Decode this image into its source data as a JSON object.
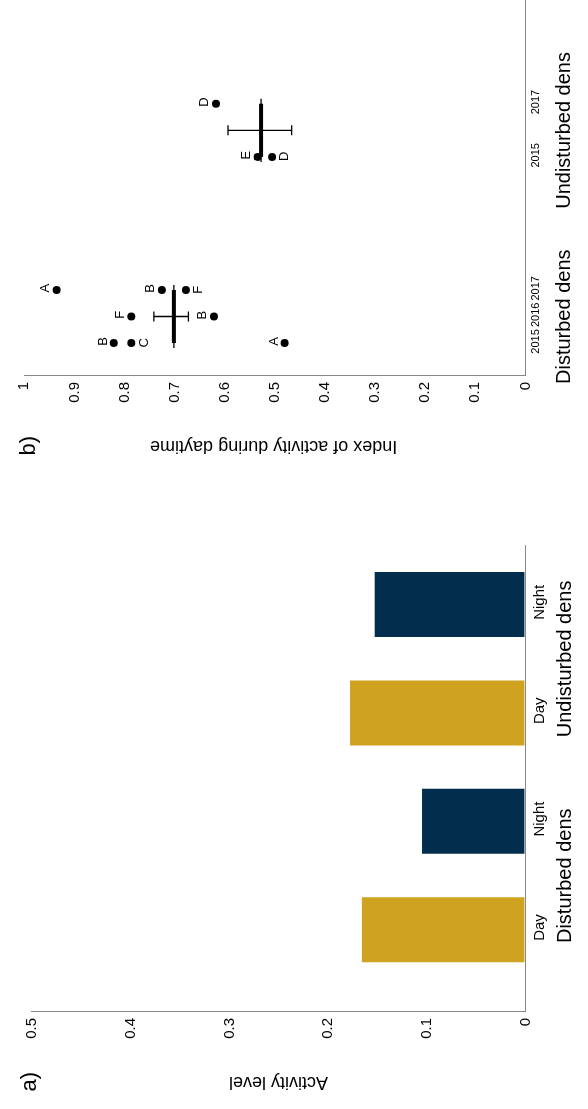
{
  "chart_data": [
    {
      "type": "bar",
      "title": "a)",
      "xlabel": "Activity level",
      "orientation": "horizontal",
      "categories": [
        "Night",
        "Day",
        "Night",
        "Day"
      ],
      "values": [
        0.152,
        0.177,
        0.104,
        0.165
      ],
      "colors": [
        "#022d4d",
        "#cfa320",
        "#022d4d",
        "#cfa320"
      ],
      "xlim": [
        0.5,
        0
      ],
      "xticks": [
        0,
        0.1,
        0.2,
        0.3,
        0.4,
        0.5
      ],
      "annotations": [
        "Undisturbed dens",
        "Disturbed dens"
      ]
    },
    {
      "type": "scatter",
      "title": "b)",
      "xlabel": "Index of activity during daytime",
      "orientation": "horizontal",
      "categories": [
        "2017",
        null,
        "2015",
        null,
        null,
        null,
        null,
        "2017",
        "2016",
        "2015"
      ],
      "series": [
        {
          "color": "#000000",
          "marker": "circle",
          "values": [
            0.616,
            null,
            0.533,
            null,
            null,
            null,
            null,
            0.934,
            0.785,
            0.82
          ],
          "value_labels": [
            "D",
            null,
            "E",
            null,
            null,
            null,
            null,
            "A",
            "F",
            "B"
          ]
        },
        {
          "color": "#000000",
          "marker": "circle",
          "values": [
            null,
            null,
            0.504,
            null,
            null,
            null,
            null,
            0.724,
            0.62,
            0.785
          ],
          "value_labels": [
            null,
            null,
            "D",
            null,
            null,
            null,
            null,
            "B",
            "B",
            "C"
          ]
        },
        {
          "color": "#000000",
          "marker": "circle",
          "values": [
            null,
            null,
            null,
            null,
            null,
            null,
            null,
            0.676,
            null,
            0.479
          ],
          "value_labels": [
            null,
            null,
            null,
            null,
            null,
            null,
            null,
            "F",
            null,
            "A"
          ]
        },
        {
          "type": "line",
          "color": "#000000",
          "marker": "none",
          "values": [
            0.526,
            0.526,
            0.526,
            null,
            null,
            null,
            null,
            null,
            null,
            null
          ],
          "errors": [
            null,
            [
              0.465,
              0.592
            ],
            null,
            null,
            null,
            null,
            null,
            null,
            null,
            null
          ]
        },
        {
          "type": "line",
          "color": "#000000",
          "marker": "none",
          "values": [
            null,
            null,
            null,
            null,
            null,
            null,
            null,
            0.7,
            0.7,
            0.7
          ],
          "errors": [
            null,
            null,
            null,
            null,
            null,
            null,
            null,
            null,
            [
              0.671,
              0.74
            ],
            null
          ]
        }
      ],
      "xlim": [
        1,
        0
      ],
      "xticks": [
        0,
        0.1,
        0.2,
        0.3,
        0.4,
        0.5,
        0.6,
        0.7,
        0.8,
        0.9,
        1
      ],
      "annotations": [
        "Undisturbed dens",
        "Disturbed dens"
      ]
    }
  ]
}
